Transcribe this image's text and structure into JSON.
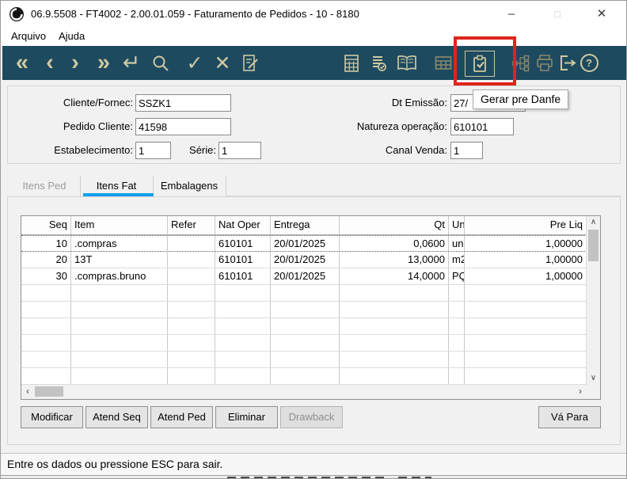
{
  "window": {
    "title": "06.9.5508 - FT4002 - 2.00.01.059 - Faturamento de Pedidos - 10 - 8180",
    "controls": {
      "minimize": "–",
      "maximize": "□",
      "close": "✕"
    }
  },
  "menu": {
    "items": [
      {
        "label": "Arquivo"
      },
      {
        "label": "Ajuda"
      }
    ]
  },
  "toolbar": {
    "glyphs": {
      "first": "«",
      "prev": "‹",
      "next": "›",
      "last": "»",
      "enter": "↵",
      "confirm": "✓",
      "cancel": "✕",
      "help": "?"
    }
  },
  "annotation": {
    "tooltip": "Gerar pre Danfe",
    "highlight_color": "#e0241b"
  },
  "form": {
    "cliente_label": "Cliente/Fornec:",
    "cliente_value": "SSZK1",
    "pedido_label": "Pedido Cliente:",
    "pedido_value": "41598",
    "estab_label": "Estabelecimento:",
    "estab_value": "1",
    "serie_label": "Série:",
    "serie_value": "1",
    "dt_label": "Dt Emissão:",
    "dt_value": "27/",
    "natureza_label": "Natureza operação:",
    "natureza_value": "610101",
    "canal_label": "Canal Venda:",
    "canal_value": "1"
  },
  "tabs": [
    {
      "label": "Itens Ped",
      "state": "disabled"
    },
    {
      "label": "Itens Fat",
      "state": "active"
    },
    {
      "label": "Embalagens",
      "state": "normal"
    }
  ],
  "table": {
    "columns": [
      {
        "label": "Seq",
        "align": "right"
      },
      {
        "label": "Item",
        "align": "left"
      },
      {
        "label": "Refer",
        "align": "left"
      },
      {
        "label": "Nat Oper",
        "align": "left"
      },
      {
        "label": "Entrega",
        "align": "left"
      },
      {
        "label": "Qt",
        "align": "right"
      },
      {
        "label": "Un",
        "align": "left"
      },
      {
        "label": "Pre Liq",
        "align": "right"
      }
    ],
    "rows": [
      [
        "10",
        ".compras",
        "",
        "610101",
        "20/01/2025",
        "0,0600",
        "un",
        "1,00000"
      ],
      [
        "20",
        "13T",
        "",
        "610101",
        "20/01/2025",
        "13,0000",
        "m2",
        "1,00000"
      ],
      [
        "30",
        ".compras.bruno",
        "",
        "610101",
        "20/01/2025",
        "14,0000",
        "PÇ",
        "1,00000"
      ]
    ],
    "selected_row_index": 0,
    "empty_row_count": 6
  },
  "buttons": [
    {
      "label": "Modificar",
      "enabled": true
    },
    {
      "label": "Atend Seq",
      "enabled": true
    },
    {
      "label": "Atend Ped",
      "enabled": true
    },
    {
      "label": "Eliminar",
      "enabled": true
    },
    {
      "label": "Drawback",
      "enabled": false
    },
    {
      "label": "Vá Para",
      "enabled": true
    }
  ],
  "statusbar": {
    "message": "Entre os dados ou pressione ESC para sair."
  },
  "scroll": {
    "up": "∧",
    "down": "∨",
    "left": "‹",
    "right": "›"
  },
  "colors": {
    "toolbar_bg": "#1d4a5f",
    "icon": "#cfc9a2",
    "icon_muted": "#8d8a6b",
    "tab_accent": "#12a0ee",
    "annotation_red": "#e0241b"
  }
}
